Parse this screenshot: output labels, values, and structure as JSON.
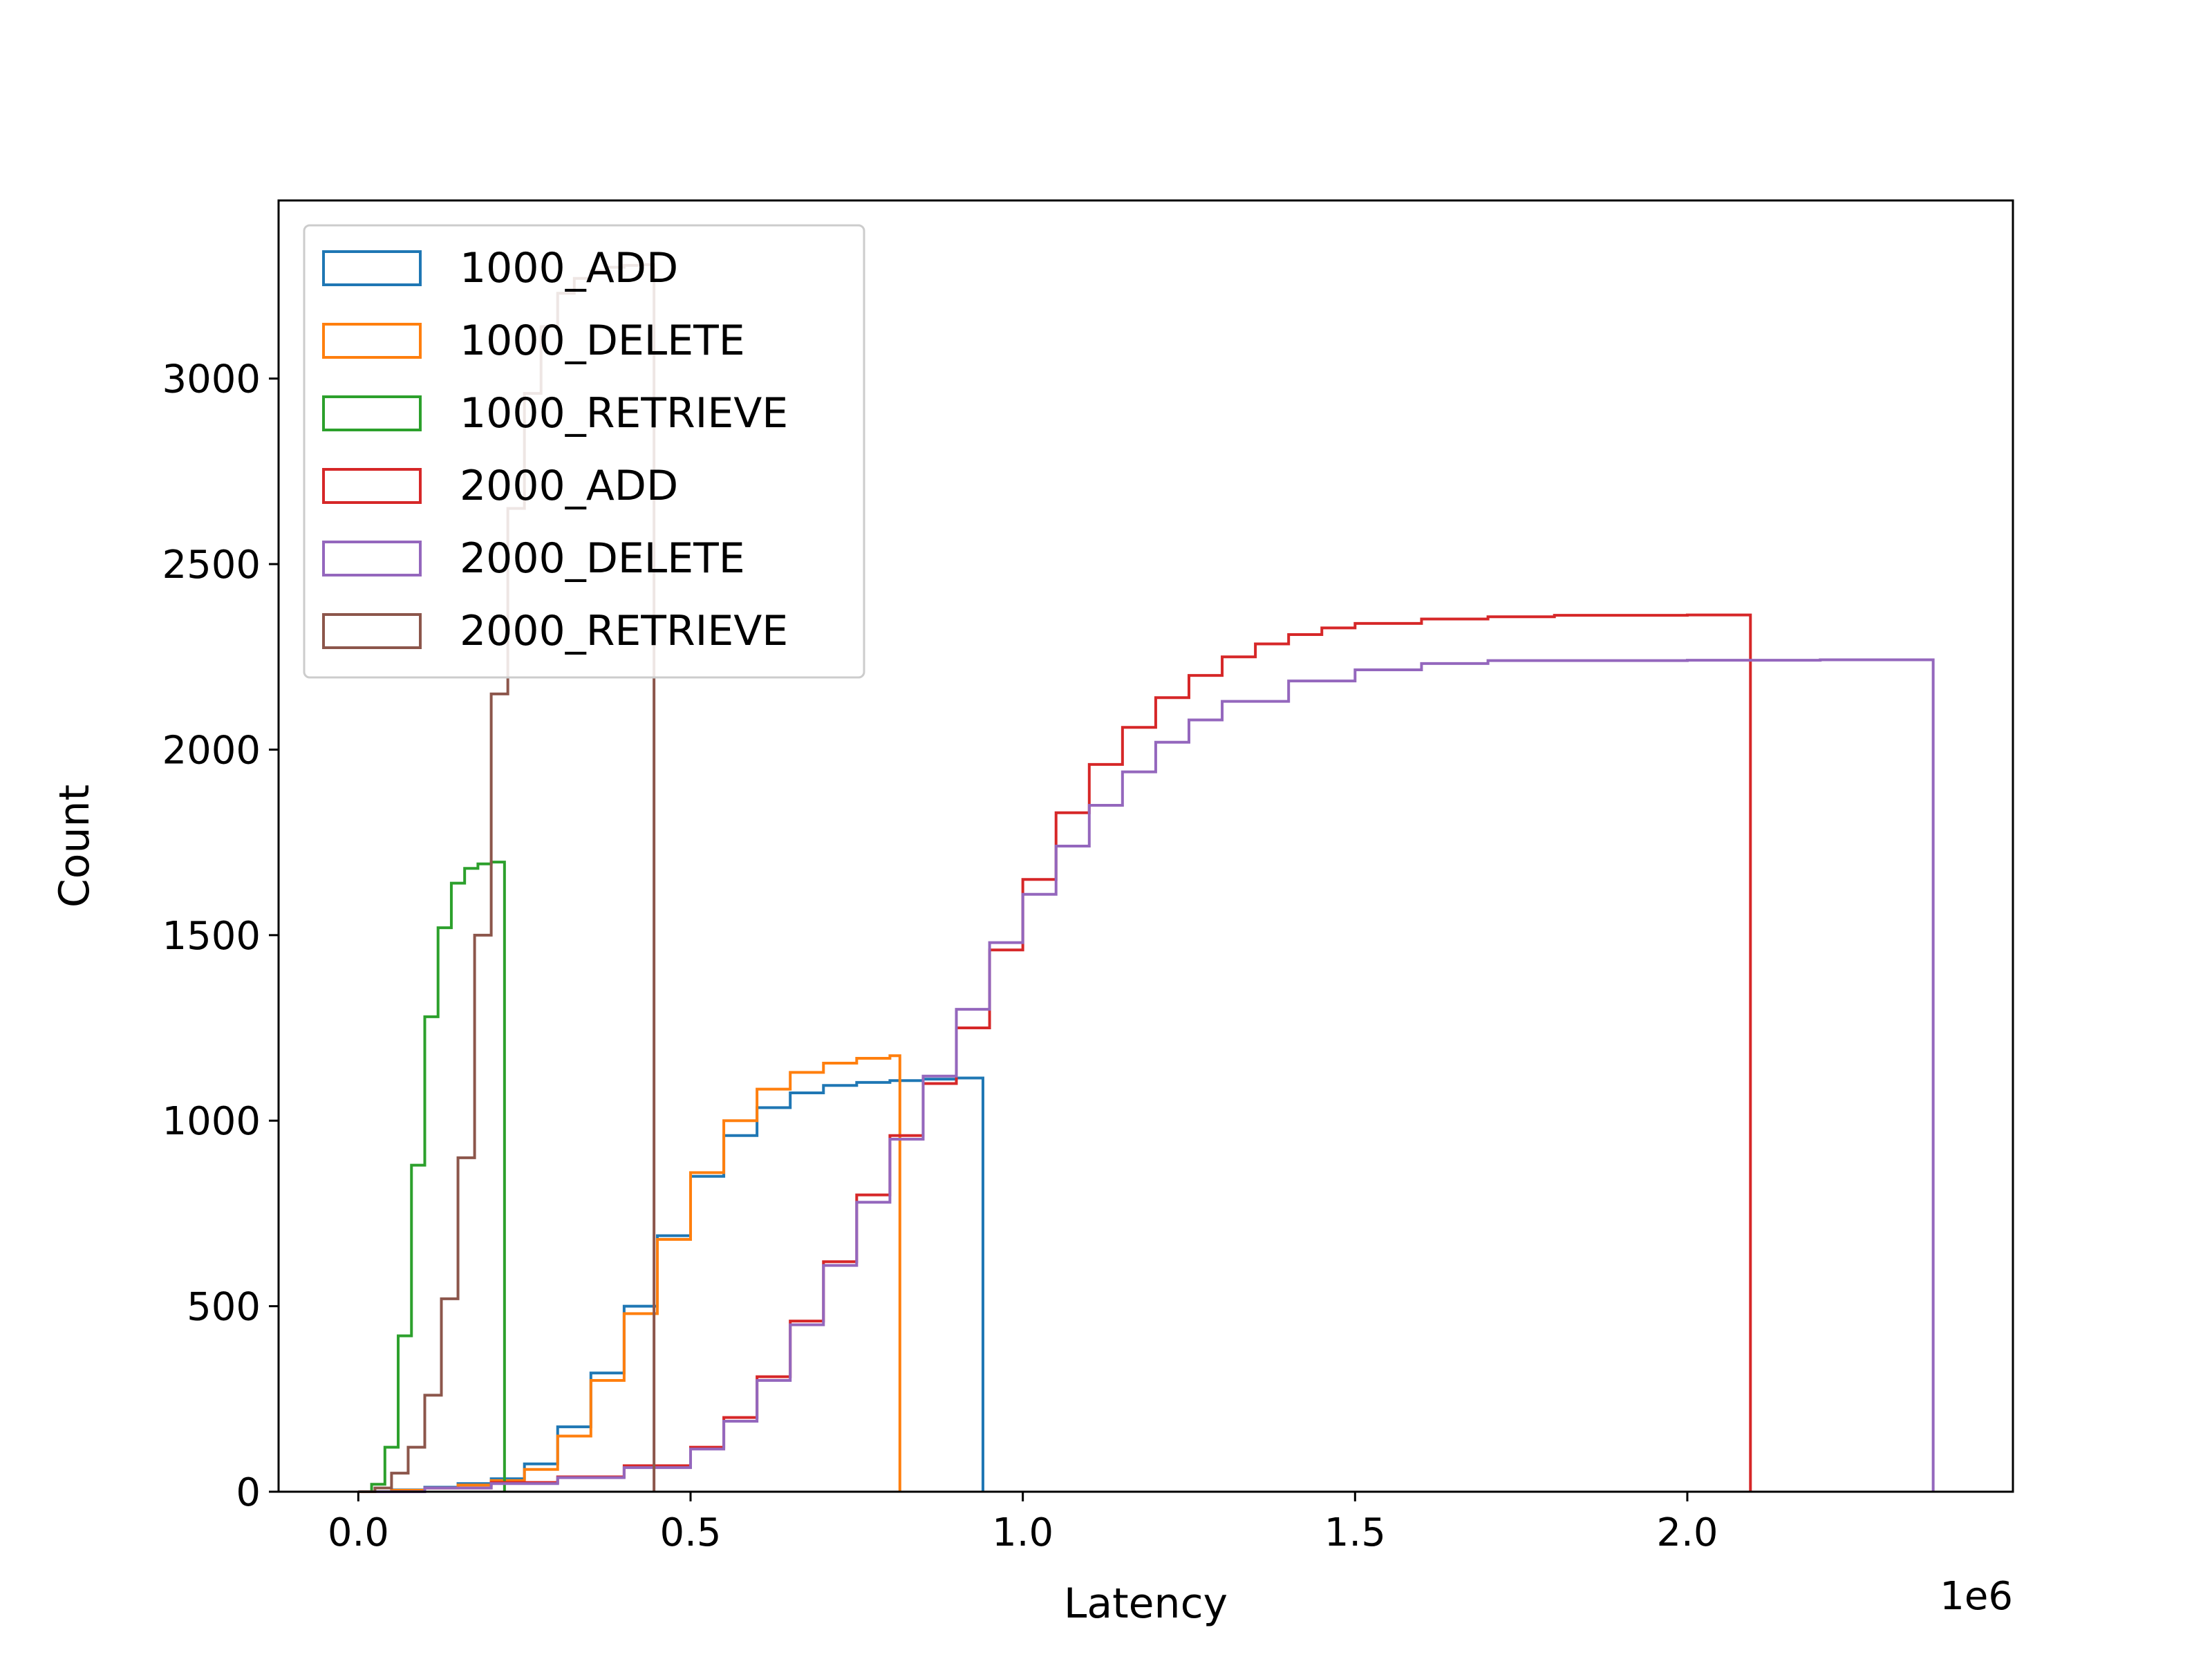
{
  "chart_data": {
    "type": "histogram-cumulative-step",
    "xlabel": "Latency",
    "ylabel": "Count",
    "x_offset_text": "1e6",
    "xlim": [
      -120000,
      2490000
    ],
    "ylim": [
      0,
      3480
    ],
    "x_ticks": [
      0,
      500000,
      1000000,
      1500000,
      2000000
    ],
    "x_tick_labels": [
      "0.0",
      "0.5",
      "1.0",
      "1.5",
      "2.0"
    ],
    "y_ticks": [
      0,
      500,
      1000,
      1500,
      2000,
      2500,
      3000
    ],
    "y_tick_labels": [
      "0",
      "500",
      "1000",
      "1500",
      "2000",
      "2500",
      "3000"
    ],
    "legend_position": "upper-left",
    "series": [
      {
        "name": "1000_ADD",
        "color": "#1f77b4",
        "x": [
          0,
          50000,
          100000,
          150000,
          200000,
          250000,
          300000,
          350000,
          400000,
          450000,
          500000,
          550000,
          600000,
          650000,
          700000,
          750000,
          800000,
          850000,
          900000,
          940000
        ],
        "y": [
          0,
          5,
          12,
          22,
          35,
          75,
          175,
          320,
          500,
          690,
          850,
          960,
          1035,
          1075,
          1095,
          1103,
          1108,
          1112,
          1115,
          1115
        ]
      },
      {
        "name": "1000_DELETE",
        "color": "#ff7f0e",
        "x": [
          0,
          50000,
          100000,
          150000,
          200000,
          250000,
          300000,
          350000,
          400000,
          450000,
          500000,
          550000,
          600000,
          650000,
          700000,
          750000,
          800000,
          815000
        ],
        "y": [
          0,
          4,
          10,
          18,
          30,
          60,
          150,
          300,
          480,
          680,
          860,
          1000,
          1085,
          1130,
          1155,
          1168,
          1175,
          1175
        ]
      },
      {
        "name": "1000_RETRIEVE",
        "color": "#2ca02c",
        "x": [
          0,
          20000,
          40000,
          60000,
          80000,
          100000,
          120000,
          140000,
          160000,
          180000,
          200000,
          220000
        ],
        "y": [
          0,
          20,
          120,
          420,
          880,
          1280,
          1520,
          1640,
          1680,
          1692,
          1697,
          1697
        ]
      },
      {
        "name": "2000_ADD",
        "color": "#d62728",
        "x": [
          0,
          100000,
          200000,
          300000,
          400000,
          500000,
          550000,
          600000,
          650000,
          700000,
          750000,
          800000,
          850000,
          900000,
          950000,
          1000000,
          1050000,
          1100000,
          1150000,
          1200000,
          1250000,
          1300000,
          1350000,
          1400000,
          1450000,
          1500000,
          1600000,
          1700000,
          1800000,
          2000000,
          2095000
        ],
        "y": [
          0,
          10,
          25,
          40,
          70,
          120,
          200,
          310,
          460,
          620,
          800,
          960,
          1100,
          1250,
          1460,
          1650,
          1830,
          1960,
          2060,
          2140,
          2200,
          2250,
          2285,
          2310,
          2328,
          2340,
          2352,
          2358,
          2362,
          2363,
          2363
        ]
      },
      {
        "name": "2000_DELETE",
        "color": "#9467bd",
        "x": [
          0,
          100000,
          200000,
          300000,
          400000,
          500000,
          550000,
          600000,
          650000,
          700000,
          750000,
          800000,
          850000,
          900000,
          950000,
          1000000,
          1050000,
          1100000,
          1150000,
          1200000,
          1250000,
          1300000,
          1400000,
          1500000,
          1600000,
          1700000,
          1800000,
          2000000,
          2200000,
          2370000
        ],
        "y": [
          0,
          10,
          22,
          38,
          65,
          115,
          190,
          300,
          450,
          610,
          780,
          950,
          1120,
          1300,
          1480,
          1610,
          1740,
          1850,
          1940,
          2020,
          2080,
          2130,
          2185,
          2215,
          2232,
          2240,
          2240,
          2241,
          2242,
          2242
        ]
      },
      {
        "name": "2000_RETRIEVE",
        "color": "#8c564b",
        "x": [
          0,
          25000,
          50000,
          75000,
          100000,
          125000,
          150000,
          175000,
          200000,
          225000,
          250000,
          275000,
          300000,
          325000,
          350000,
          375000,
          400000,
          425000,
          445000
        ],
        "y": [
          0,
          10,
          50,
          120,
          260,
          520,
          900,
          1500,
          2150,
          2650,
          2960,
          3140,
          3230,
          3270,
          3290,
          3300,
          3305,
          3307,
          3307
        ]
      }
    ]
  }
}
